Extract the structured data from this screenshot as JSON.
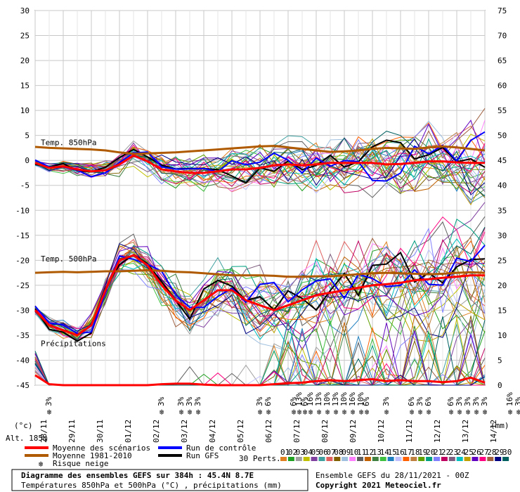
{
  "chart_data": {
    "type": "line",
    "title": "Diagramme des ensembles GEFS sur 384h : 45.4N 8.7E",
    "subtitle": "Températures 850hPa et 500hPa (°C) , précipitations (mm)",
    "run_label": "Ensemble GEFS du 28/11/2021 - 00Z",
    "copyright": "Copyright 2021 Meteociel.fr",
    "altitude": "Alt. 185m",
    "y_left_unit": "(°c)",
    "y_right_unit": "(mm)",
    "y_left_ticks": [
      "30",
      "25",
      "20",
      "15",
      "10",
      "5",
      "0",
      "-5",
      "-10",
      "-15",
      "-20",
      "-25",
      "-30",
      "-35",
      "-40",
      "-45"
    ],
    "y_right_ticks": [
      "75",
      "70",
      "65",
      "60",
      "55",
      "50",
      "45",
      "40",
      "35",
      "30",
      "25",
      "20",
      "15",
      "10",
      "5",
      "0"
    ],
    "ylim_left": [
      -45,
      30
    ],
    "ylim_right": [
      0,
      75
    ],
    "x_labels": [
      "28/11",
      "29/11",
      "30/11",
      "01/12",
      "02/12",
      "03/12",
      "04/12",
      "05/12",
      "06/12",
      "07/12",
      "08/12",
      "09/12",
      "10/12",
      "11/12",
      "12/12",
      "13/12",
      "14/12"
    ],
    "panel_labels": {
      "t850": "Temp. 850hPa",
      "t500": "Temp. 500hPa",
      "precip": "Précipitations"
    },
    "series": [
      {
        "name": "Moyenne des scénarios",
        "color": "#ff0000",
        "t850": [
          -0.5,
          -1.5,
          -1.2,
          -1.8,
          -2.2,
          -2.0,
          -0.8,
          1.0,
          -0.2,
          -1.8,
          -2.2,
          -2.5,
          -2.5,
          -2.2,
          -1.8,
          -1.8,
          -1.5,
          -1.0,
          -0.8,
          -1.0,
          -0.8,
          -0.5,
          -0.5,
          -0.5,
          -0.5,
          -0.8,
          -0.7,
          -0.5,
          -0.2,
          -0.2,
          -0.4,
          -0.5,
          -0.5
        ],
        "t500": [
          -30,
          -33,
          -34,
          -35,
          -33,
          -26,
          -20,
          -19,
          -21,
          -25,
          -28,
          -30,
          -28,
          -26,
          -26,
          -28,
          -29,
          -30,
          -29,
          -28,
          -27,
          -26.5,
          -26,
          -25.5,
          -25,
          -24.8,
          -24.5,
          -24,
          -23.8,
          -23.5,
          -23.3,
          -23,
          -23
        ],
        "precip": [
          2,
          0.2,
          0,
          0,
          0,
          0,
          0,
          0,
          0,
          0.2,
          0.3,
          0.3,
          0.1,
          0,
          0,
          0,
          0,
          0.2,
          0.4,
          0.5,
          0.8,
          1,
          0.8,
          1,
          1.2,
          0.8,
          1,
          0.8,
          0.8,
          0.6,
          0.8,
          1.5,
          0.5
        ]
      },
      {
        "name": "Moyenne 1981-2010",
        "color": "#b05a00",
        "t850": [
          2.7,
          2.5,
          2.4,
          2.3,
          2.2,
          2.0,
          1.6,
          1.3,
          1.4,
          1.5,
          1.6,
          1.8,
          2.0,
          2.2,
          2.4,
          2.6,
          2.8,
          2.9,
          2.6,
          2.3,
          2.0,
          1.7,
          1.8,
          2.0,
          2.3,
          2.5,
          2.4,
          2.3,
          2.6,
          2.8,
          2.6,
          2.3,
          2.0
        ],
        "t500": [
          -22.5,
          -22.4,
          -22.3,
          -22.4,
          -22.3,
          -22.2,
          -22.2,
          -22.1,
          -22.0,
          -22.1,
          -22.3,
          -22.4,
          -22.6,
          -22.8,
          -23.0,
          -23.0,
          -23.0,
          -23.1,
          -23.3,
          -23.3,
          -23.2,
          -23.2,
          -23.0,
          -22.8,
          -22.6,
          -22.5,
          -22.6,
          -22.7,
          -22.8,
          -22.7,
          -22.5,
          -22.4,
          -22.5
        ]
      },
      {
        "name": "Run de contrôle",
        "color": "#0000ff"
      },
      {
        "name": "Run GFS",
        "color": "#000000"
      },
      {
        "name": "Risque neige",
        "color": "#55aaff"
      }
    ],
    "snow_markers": [
      {
        "day": 0.5,
        "pct": "3%"
      },
      {
        "day": 4.5,
        "pct": "3%"
      },
      {
        "day": 5.2,
        "pct": "3%"
      },
      {
        "day": 5.5,
        "pct": "3%"
      },
      {
        "day": 5.8,
        "pct": "3%"
      },
      {
        "day": 8.0,
        "pct": "3%"
      },
      {
        "day": 8.3,
        "pct": "6%"
      },
      {
        "day": 9.2,
        "pct": "6%"
      },
      {
        "day": 9.4,
        "pct": "13%"
      },
      {
        "day": 9.6,
        "pct": "6%"
      },
      {
        "day": 9.8,
        "pct": "16%"
      },
      {
        "day": 10.1,
        "pct": "13%"
      },
      {
        "day": 10.4,
        "pct": "10%"
      },
      {
        "day": 10.7,
        "pct": "13%"
      },
      {
        "day": 11.0,
        "pct": "10%"
      },
      {
        "day": 11.3,
        "pct": "16%"
      },
      {
        "day": 11.6,
        "pct": "10%"
      },
      {
        "day": 11.8,
        "pct": "6%"
      },
      {
        "day": 12.5,
        "pct": "3%"
      },
      {
        "day": 13.4,
        "pct": "6%"
      },
      {
        "day": 13.7,
        "pct": "3%"
      },
      {
        "day": 14.0,
        "pct": "6%"
      },
      {
        "day": 14.8,
        "pct": "6%"
      },
      {
        "day": 15.1,
        "pct": "3%"
      },
      {
        "day": 15.4,
        "pct": "3%"
      },
      {
        "day": 15.7,
        "pct": "3%"
      },
      {
        "day": 16.0,
        "pct": "3%"
      },
      {
        "day": 16.9,
        "pct": "16%"
      },
      {
        "day": 17.2,
        "pct": "3%"
      },
      {
        "day": 17.5,
        "pct": "3%"
      }
    ],
    "perts_label": "30 Perts.",
    "perts_numbers": [
      "01",
      "02",
      "03",
      "04",
      "05",
      "06",
      "07",
      "08",
      "09",
      "10",
      "11",
      "12",
      "13",
      "14",
      "15",
      "16",
      "17",
      "18",
      "19",
      "20",
      "21",
      "22",
      "23",
      "24",
      "25",
      "26",
      "27",
      "28",
      "29",
      "30"
    ],
    "perts_colors": [
      "#e08020",
      "#20a020",
      "#a0a0a0",
      "#c0c000",
      "#8040a0",
      "#40a0a0",
      "#e06060",
      "#806000",
      "#a0c0e0",
      "#ff80ff",
      "#606060",
      "#c06000",
      "#408040",
      "#40c040",
      "#2080c0",
      "#c0c0ff",
      "#ff6000",
      "#c08040",
      "#60a000",
      "#00a080",
      "#8080ff",
      "#c00060",
      "#806080",
      "#00c0c0",
      "#c0a000",
      "#6000c0",
      "#ff0080",
      "#a06040",
      "#000080",
      "#006060"
    ]
  }
}
